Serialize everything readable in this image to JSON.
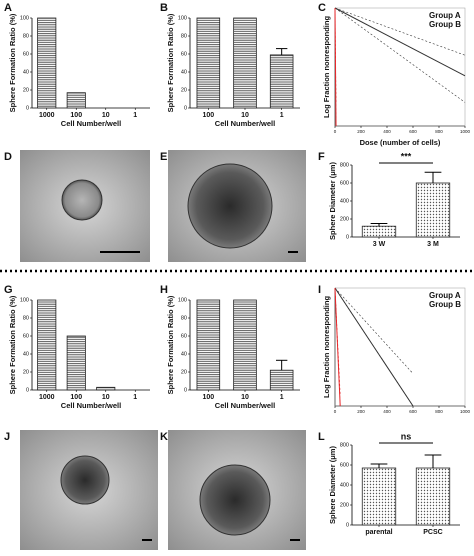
{
  "chart_data": [
    {
      "type": "bar",
      "label": "A",
      "ylabel": "Sphere Formation Ratio (%)",
      "xlabel": "Cell Number/well",
      "categories": [
        "1000",
        "100",
        "10",
        "1"
      ],
      "values": [
        100,
        17,
        0,
        0
      ],
      "ylim": [
        0,
        100
      ],
      "yticks": [
        0,
        20,
        40,
        60,
        80,
        100
      ]
    },
    {
      "type": "bar",
      "label": "B",
      "ylabel": "Sphere Formation Ratio (%)",
      "xlabel": "Cell Number/well",
      "categories": [
        "100",
        "10",
        "1"
      ],
      "values": [
        100,
        100,
        59
      ],
      "errors": [
        0,
        0,
        7
      ],
      "ylim": [
        0,
        100
      ],
      "yticks": [
        0,
        20,
        40,
        60,
        80,
        100
      ]
    },
    {
      "type": "line",
      "label": "C",
      "ylabel": "Log Fraction nonresponding",
      "xlabel": "Dose (number of cells)",
      "xlim": [
        0,
        1000
      ],
      "xticks": [
        0,
        200,
        400,
        600,
        800,
        1000
      ],
      "ylim": [
        -4,
        0
      ],
      "legend": "upper right",
      "series": [
        {
          "name": "Group A",
          "color": "#333333",
          "x": [
            0,
            1000
          ],
          "values": [
            0,
            -2.3
          ],
          "upper": [
            0,
            -1.6
          ],
          "lower": [
            0,
            -3.2
          ]
        },
        {
          "name": "Group B",
          "color": "#e8272a",
          "x": [
            0,
            8
          ],
          "values": [
            0,
            -4
          ],
          "upper": [
            0,
            -3.2
          ],
          "lower": [
            0,
            -4
          ]
        }
      ]
    },
    {
      "type": "bar",
      "label": "F",
      "ylabel": "Sphere Diameter (μm)",
      "categories": [
        "3 W",
        "3 M"
      ],
      "values": [
        120,
        600
      ],
      "errors": [
        30,
        120
      ],
      "annotation": "***",
      "ylim": [
        0,
        800
      ],
      "yticks": [
        0,
        200,
        400,
        600,
        800
      ]
    },
    {
      "type": "bar",
      "label": "G",
      "ylabel": "Sphere Formation Ratio (%)",
      "xlabel": "Cell Number/well",
      "categories": [
        "1000",
        "100",
        "10",
        "1"
      ],
      "values": [
        100,
        60,
        3,
        0
      ],
      "ylim": [
        0,
        100
      ],
      "yticks": [
        0,
        20,
        40,
        60,
        80,
        100
      ]
    },
    {
      "type": "bar",
      "label": "H",
      "ylabel": "Sphere Formation Ratio (%)",
      "xlabel": "Cell Number/well",
      "categories": [
        "100",
        "10",
        "1"
      ],
      "values": [
        100,
        100,
        22
      ],
      "errors": [
        0,
        0,
        11
      ],
      "ylim": [
        0,
        100
      ],
      "yticks": [
        0,
        20,
        40,
        60,
        80,
        100
      ]
    },
    {
      "type": "line",
      "label": "I",
      "ylabel": "Log Fraction nonresponding",
      "xlim": [
        0,
        1000
      ],
      "xticks": [
        0,
        200,
        400,
        600,
        800,
        1000
      ],
      "ylim": [
        -4,
        0
      ],
      "legend": "upper right",
      "series": [
        {
          "name": "Group A",
          "color": "#333333",
          "x": [
            0,
            600
          ],
          "values": [
            0,
            -4
          ],
          "upper": [
            0,
            -2.9
          ],
          "lower": [
            0,
            -4
          ]
        },
        {
          "name": "Group B",
          "color": "#e8272a",
          "x": [
            0,
            40
          ],
          "values": [
            0,
            -4
          ],
          "upper": [
            0,
            -3.6
          ],
          "lower": [
            0,
            -4
          ]
        }
      ]
    },
    {
      "type": "bar",
      "label": "L",
      "ylabel": "Sphere Diameter (μm)",
      "categories": [
        "parental",
        "PCSC"
      ],
      "values": [
        570,
        570
      ],
      "errors": [
        40,
        130
      ],
      "annotation": "ns",
      "ylim": [
        0,
        800
      ],
      "yticks": [
        0,
        200,
        400,
        600,
        800
      ]
    }
  ],
  "images": [
    {
      "label": "D"
    },
    {
      "label": "E"
    },
    {
      "label": "J"
    },
    {
      "label": "K"
    }
  ]
}
